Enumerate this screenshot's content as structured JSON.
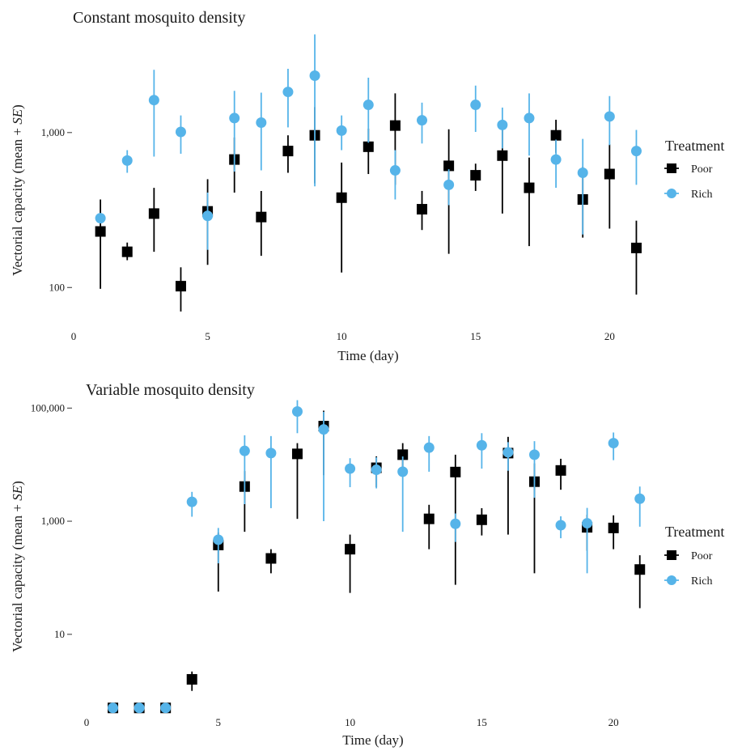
{
  "chart_data": [
    {
      "type": "scatter",
      "title": "Constant mosquito density",
      "xlabel": "Time (day)",
      "ylabel_prefix": "Vectorial capacity (mean + ",
      "ylabel_italic": "SE",
      "ylabel_suffix": ")",
      "y_scale": "log",
      "xlim": [
        0,
        21.5
      ],
      "ylim": [
        62,
        5000
      ],
      "x_ticks": [
        0,
        5,
        10,
        15,
        20
      ],
      "x_tick_labels": [
        "0",
        "5",
        "10",
        "15",
        "20"
      ],
      "y_ticks": [
        100,
        1000
      ],
      "y_tick_labels": [
        "100",
        "1,000"
      ],
      "legend": {
        "title": "Treatment",
        "position": "right"
      },
      "series": [
        {
          "name": "Poor",
          "color": "#000000",
          "marker": "square",
          "x": [
            1,
            2,
            3,
            4,
            5,
            6,
            7,
            8,
            9,
            10,
            11,
            12,
            13,
            14,
            15,
            16,
            17,
            18,
            19,
            20,
            21
          ],
          "y": [
            230,
            170,
            300,
            102,
            310,
            670,
            285,
            760,
            960,
            380,
            810,
            1110,
            320,
            610,
            530,
            710,
            440,
            960,
            370,
            540,
            180
          ],
          "lower": [
            98,
            150,
            170,
            70,
            140,
            410,
            160,
            550,
            470,
            125,
            540,
            460,
            235,
            165,
            420,
            300,
            185,
            740,
            210,
            240,
            90
          ],
          "upper": [
            370,
            195,
            440,
            135,
            500,
            930,
            420,
            960,
            1460,
            640,
            1060,
            1790,
            420,
            1050,
            630,
            1080,
            690,
            1210,
            600,
            840,
            270
          ]
        },
        {
          "name": "Rich",
          "color": "#56B4E9",
          "marker": "circle",
          "x": [
            1,
            2,
            3,
            4,
            5,
            6,
            7,
            8,
            9,
            10,
            11,
            12,
            13,
            14,
            15,
            16,
            17,
            18,
            19,
            20,
            21
          ],
          "y": [
            280,
            660,
            1620,
            1010,
            290,
            1240,
            1160,
            1830,
            2330,
            1030,
            1510,
            570,
            1200,
            460,
            1510,
            1120,
            1240,
            670,
            550,
            1270,
            760
          ],
          "lower": [
            280,
            550,
            700,
            730,
            175,
            560,
            570,
            1080,
            450,
            770,
            860,
            370,
            850,
            340,
            1010,
            790,
            710,
            440,
            220,
            830,
            460
          ],
          "upper": [
            280,
            770,
            2540,
            1290,
            410,
            1860,
            1810,
            2580,
            4300,
            1290,
            2260,
            770,
            1560,
            580,
            2010,
            1450,
            1790,
            900,
            910,
            1720,
            1040
          ]
        }
      ]
    },
    {
      "type": "scatter",
      "title": "Variable mosquito density",
      "xlabel": "Time (day)",
      "ylabel_prefix": "Vectorial capacity (mean + ",
      "ylabel_italic": "SE",
      "ylabel_suffix": ")",
      "y_scale": "log",
      "xlim": [
        0,
        21.5
      ],
      "ylim": [
        0.48,
        160000
      ],
      "x_ticks": [
        0,
        5,
        10,
        15,
        20
      ],
      "x_tick_labels": [
        "0",
        "5",
        "10",
        "15",
        "20"
      ],
      "y_ticks": [
        10,
        1000,
        100000
      ],
      "y_tick_labels": [
        "10",
        "1,000",
        "100,000"
      ],
      "legend": {
        "title": "Treatment",
        "position": "right"
      },
      "series": [
        {
          "name": "Poor",
          "color": "#000000",
          "marker": "square",
          "x": [
            1,
            2,
            3,
            4,
            5,
            6,
            7,
            8,
            9,
            10,
            11,
            12,
            13,
            14,
            15,
            16,
            17,
            18,
            19,
            20,
            21
          ],
          "y": [
            0.5,
            0.5,
            0.5,
            1.6,
            380,
            4100,
            220,
            15500,
            48000,
            320,
            8800,
            15000,
            1100,
            7400,
            1060,
            16000,
            5000,
            7900,
            780,
            760,
            140
          ],
          "lower": [
            0.5,
            0.5,
            0.5,
            1.0,
            57,
            650,
            120,
            1100,
            6500,
            54,
            4000,
            6500,
            320,
            75,
            560,
            580,
            120,
            3600,
            300,
            320,
            29
          ],
          "upper": [
            0.5,
            0.5,
            0.5,
            2.2,
            630,
            7700,
            320,
            24000,
            90000,
            580,
            14000,
            24000,
            1950,
            15000,
            1700,
            31000,
            10500,
            12700,
            1300,
            1270,
            250
          ]
        },
        {
          "name": "Rich",
          "color": "#56B4E9",
          "marker": "circle",
          "x": [
            1,
            2,
            3,
            4,
            5,
            6,
            7,
            8,
            9,
            10,
            11,
            12,
            13,
            14,
            15,
            16,
            17,
            18,
            19,
            20,
            21
          ],
          "y": [
            0.5,
            0.5,
            0.5,
            2200,
            470,
            17500,
            16000,
            87000,
            42000,
            8500,
            8100,
            7500,
            20000,
            900,
            22000,
            16500,
            15000,
            850,
            920,
            24000,
            2500
          ],
          "lower": [
            0.5,
            0.5,
            0.5,
            1200,
            180,
            2000,
            1700,
            36000,
            1000,
            4000,
            3800,
            650,
            7500,
            430,
            8500,
            7800,
            2600,
            500,
            120,
            12000,
            800
          ],
          "upper": [
            0.5,
            0.5,
            0.5,
            3300,
            760,
            33000,
            32000,
            138000,
            86000,
            13000,
            13500,
            14000,
            32000,
            1370,
            36000,
            25000,
            26000,
            1220,
            1720,
            37000,
            4100
          ]
        }
      ]
    }
  ]
}
